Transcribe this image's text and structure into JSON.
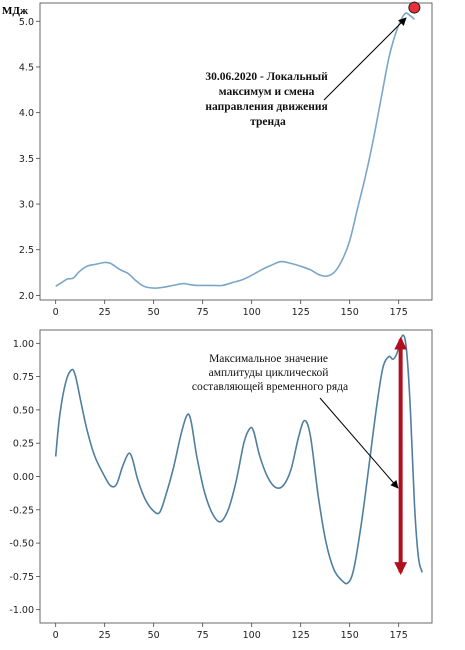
{
  "chart_data": [
    {
      "type": "line",
      "unit_label": "МДж",
      "xlim": [
        -8,
        192
      ],
      "ylim": [
        1.95,
        5.2
      ],
      "xticks": [
        0,
        25,
        50,
        75,
        100,
        125,
        150,
        175
      ],
      "yticks": [
        2.0,
        2.5,
        3.0,
        3.5,
        4.0,
        4.5,
        5.0
      ],
      "series": [
        {
          "color": "#7aa6c8",
          "points": [
            [
              0,
              2.1
            ],
            [
              3,
              2.14
            ],
            [
              6,
              2.18
            ],
            [
              9,
              2.19
            ],
            [
              12,
              2.26
            ],
            [
              16,
              2.32
            ],
            [
              20,
              2.34
            ],
            [
              25,
              2.36
            ],
            [
              28,
              2.35
            ],
            [
              33,
              2.28
            ],
            [
              37,
              2.24
            ],
            [
              41,
              2.16
            ],
            [
              45,
              2.1
            ],
            [
              50,
              2.08
            ],
            [
              55,
              2.09
            ],
            [
              60,
              2.11
            ],
            [
              65,
              2.13
            ],
            [
              68,
              2.12
            ],
            [
              72,
              2.11
            ],
            [
              78,
              2.11
            ],
            [
              85,
              2.11
            ],
            [
              90,
              2.14
            ],
            [
              95,
              2.17
            ],
            [
              100,
              2.22
            ],
            [
              105,
              2.28
            ],
            [
              110,
              2.33
            ],
            [
              115,
              2.37
            ],
            [
              120,
              2.35
            ],
            [
              125,
              2.32
            ],
            [
              130,
              2.28
            ],
            [
              134,
              2.23
            ],
            [
              138,
              2.21
            ],
            [
              142,
              2.25
            ],
            [
              146,
              2.38
            ],
            [
              150,
              2.6
            ],
            [
              154,
              2.95
            ],
            [
              158,
              3.3
            ],
            [
              162,
              3.7
            ],
            [
              166,
              4.15
            ],
            [
              170,
              4.6
            ],
            [
              174,
              4.9
            ],
            [
              178,
              5.08
            ],
            [
              181,
              5.06
            ],
            [
              183,
              5.02
            ]
          ]
        }
      ],
      "marker": {
        "x": 183,
        "y": 5.15,
        "color": "#e8303a"
      },
      "annotation": {
        "lines": [
          "30.06.2020 - Локальный",
          "максимум и смена",
          "направления движения",
          "тренда"
        ]
      }
    },
    {
      "type": "line",
      "xlim": [
        -8,
        192
      ],
      "ylim": [
        -1.1,
        1.1
      ],
      "xticks": [
        0,
        25,
        50,
        75,
        100,
        125,
        150,
        175
      ],
      "yticks": [
        1.0,
        0.75,
        0.5,
        0.25,
        0.0,
        -0.25,
        -0.5,
        -0.75,
        -1.0
      ],
      "ytick_labels": [
        "1.00",
        "0.75",
        "0.50",
        "0.25",
        "0.00",
        "-0.25",
        "-0.50",
        "-0.75",
        "-1.00"
      ],
      "series": [
        {
          "color": "#4f7f9e",
          "points": [
            [
              0,
              0.15
            ],
            [
              2,
              0.45
            ],
            [
              5,
              0.7
            ],
            [
              8,
              0.8
            ],
            [
              10,
              0.76
            ],
            [
              13,
              0.55
            ],
            [
              16,
              0.35
            ],
            [
              20,
              0.15
            ],
            [
              25,
              0.0
            ],
            [
              28,
              -0.07
            ],
            [
              31,
              -0.06
            ],
            [
              34,
              0.07
            ],
            [
              37,
              0.17
            ],
            [
              39,
              0.14
            ],
            [
              42,
              -0.03
            ],
            [
              46,
              -0.18
            ],
            [
              50,
              -0.26
            ],
            [
              53,
              -0.27
            ],
            [
              56,
              -0.15
            ],
            [
              60,
              0.06
            ],
            [
              64,
              0.32
            ],
            [
              67,
              0.46
            ],
            [
              69,
              0.42
            ],
            [
              72,
              0.15
            ],
            [
              76,
              -0.12
            ],
            [
              80,
              -0.28
            ],
            [
              84,
              -0.34
            ],
            [
              88,
              -0.25
            ],
            [
              92,
              -0.04
            ],
            [
              96,
              0.25
            ],
            [
              99,
              0.36
            ],
            [
              101,
              0.34
            ],
            [
              104,
              0.16
            ],
            [
              108,
              0.0
            ],
            [
              112,
              -0.08
            ],
            [
              116,
              -0.07
            ],
            [
              120,
              0.05
            ],
            [
              124,
              0.3
            ],
            [
              127,
              0.42
            ],
            [
              130,
              0.3
            ],
            [
              134,
              -0.15
            ],
            [
              138,
              -0.5
            ],
            [
              142,
              -0.7
            ],
            [
              146,
              -0.78
            ],
            [
              149,
              -0.8
            ],
            [
              152,
              -0.7
            ],
            [
              156,
              -0.35
            ],
            [
              160,
              0.1
            ],
            [
              164,
              0.55
            ],
            [
              167,
              0.82
            ],
            [
              170,
              0.9
            ],
            [
              172,
              0.88
            ],
            [
              174,
              0.92
            ],
            [
              177,
              1.06
            ],
            [
              179,
              0.95
            ],
            [
              181,
              0.5
            ],
            [
              183,
              -0.2
            ],
            [
              185,
              -0.6
            ],
            [
              187,
              -0.72
            ]
          ]
        }
      ],
      "arrow": {
        "x": 176,
        "y_top": 1.09,
        "y_bottom": -0.78,
        "color": "#b0101e"
      },
      "annotation": {
        "lines": [
          "Максимальное значение",
          "амплитуды циклической",
          "составляющей временного ряда"
        ]
      }
    }
  ]
}
